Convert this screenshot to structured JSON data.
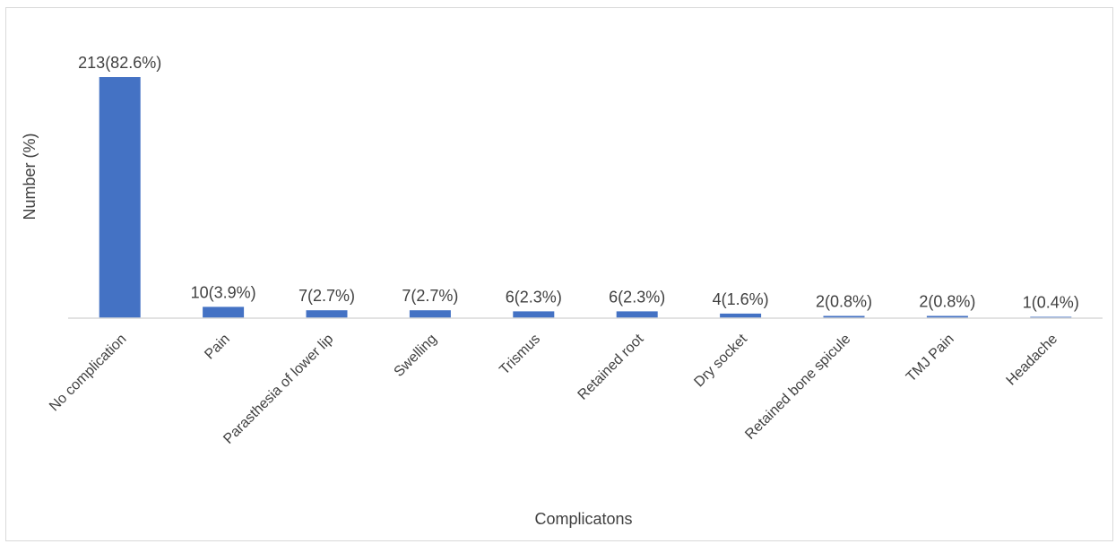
{
  "chart_data": {
    "type": "bar",
    "xlabel": "Complicatons",
    "ylabel": "Number (%)",
    "categories": [
      "No complication",
      "Pain",
      "Parasthesia of lower lip",
      "Swelling",
      "Trismus",
      "Retained root",
      "Dry socket",
      "Retained bone spicule",
      "TMJ Pain",
      "Headache"
    ],
    "values": [
      213,
      10,
      7,
      7,
      6,
      6,
      4,
      2,
      2,
      1
    ],
    "data_labels": [
      "213(82.6%)",
      "10(3.9%)",
      "7(2.7%)",
      "7(2.7%)",
      "6(2.3%)",
      "6(2.3%)",
      "4(1.6%)",
      "2(0.8%)",
      "2(0.8%)",
      "1(0.4%)"
    ],
    "ylim": [
      0,
      213
    ],
    "grid": false,
    "legend": "none",
    "bar_color": "#4472c4",
    "axis_color": "#d9d9d9",
    "text_color": "#404040"
  }
}
